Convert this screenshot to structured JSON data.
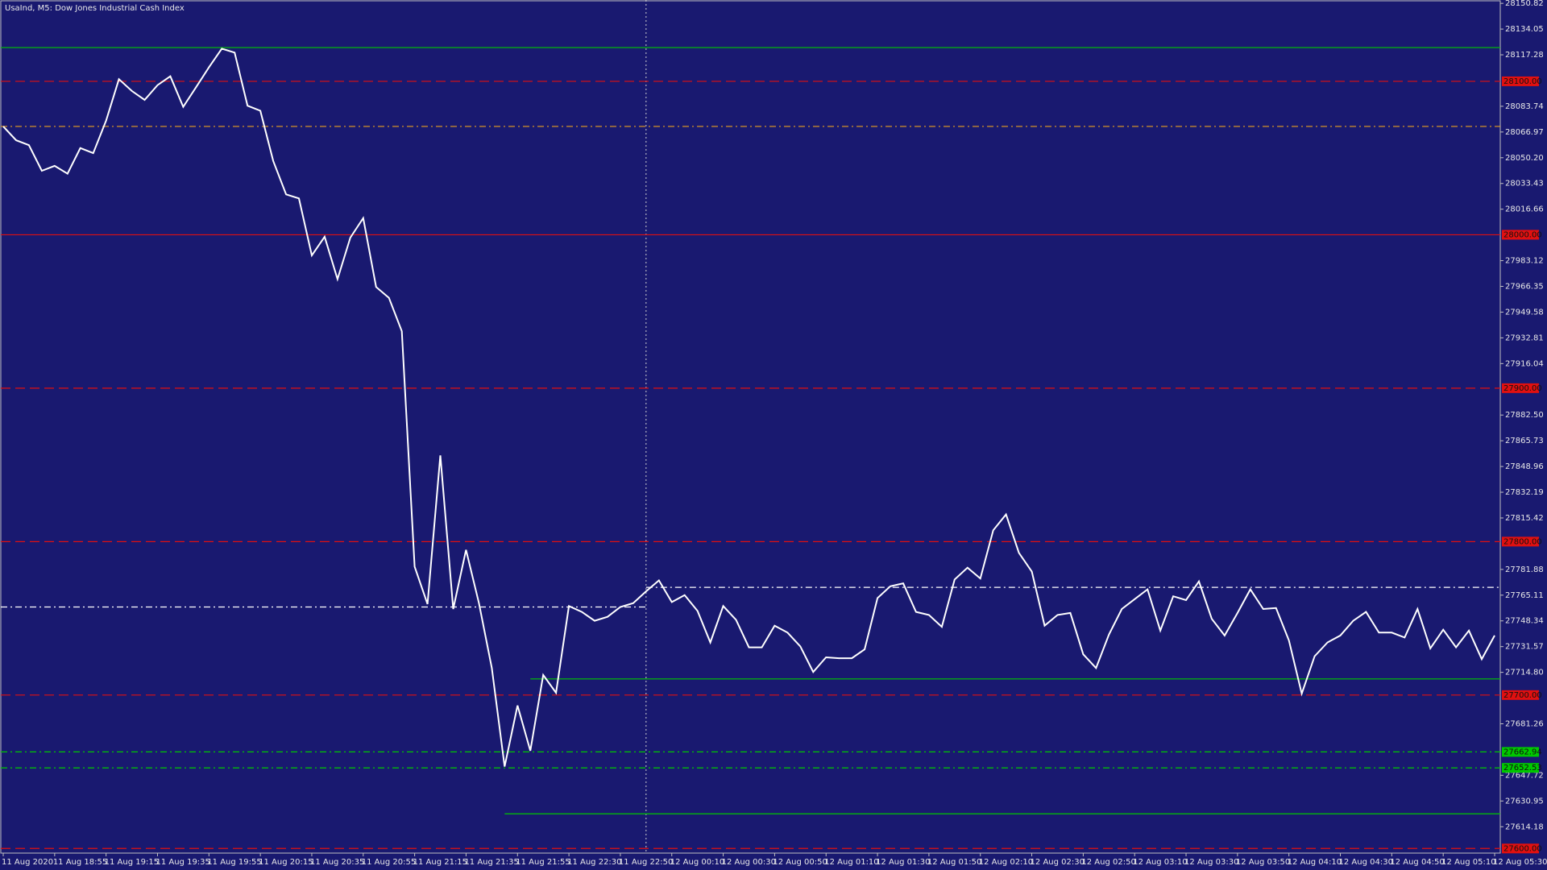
{
  "chart_data": {
    "type": "line",
    "title": "UsaInd, M5:  Dow Jones Industrial Cash Index",
    "background": "#191970",
    "color": "#ffffff",
    "x": [
      "11 Aug 2020",
      null,
      null,
      null,
      "11 Aug 18:55",
      null,
      null,
      null,
      "11 Aug 19:15",
      null,
      null,
      null,
      "11 Aug 19:35",
      null,
      null,
      null,
      "11 Aug 19:55",
      null,
      null,
      null,
      "11 Aug 20:15",
      null,
      null,
      null,
      "11 Aug 20:35",
      null,
      null,
      null,
      "11 Aug 20:55",
      null,
      null,
      null,
      "11 Aug 21:15",
      null,
      null,
      null,
      "11 Aug 21:35",
      null,
      null,
      null,
      "11 Aug 21:55",
      null,
      null,
      null,
      "11 Aug 22:30",
      null,
      null,
      null,
      "11 Aug 22:50",
      null,
      null,
      null,
      "12 Aug 00:10",
      null,
      null,
      null,
      "12 Aug 00:30",
      null,
      null,
      null,
      "12 Aug 00:50",
      null,
      null,
      null,
      "12 Aug 01:10",
      null,
      null,
      null,
      "12 Aug 01:30",
      null,
      null,
      null,
      "12 Aug 01:50",
      null,
      null,
      null,
      "12 Aug 02:10",
      null,
      null,
      null,
      "12 Aug 02:30",
      null,
      null,
      null,
      "12 Aug 02:50",
      null,
      null,
      null,
      "12 Aug 03:10",
      null,
      null,
      null,
      "12 Aug 03:30",
      null,
      null,
      null,
      "12 Aug 03:50",
      null,
      null,
      null,
      "12 Aug 04:10",
      null,
      null,
      null,
      "12 Aug 04:30",
      null,
      null,
      null,
      "12 Aug 04:50",
      null,
      null,
      null,
      "12 Aug 05:10",
      null,
      null,
      null,
      "12 Aug 05:30"
    ],
    "values": [
      28070.6,
      28061.6,
      28058.4,
      28041.7,
      28044.9,
      28039.8,
      28056.5,
      28053.2,
      28074.4,
      28101.4,
      28093.7,
      28087.9,
      28097.5,
      28103.3,
      28083.4,
      28096.2,
      28109.1,
      28121.3,
      28118.7,
      28084.1,
      28080.8,
      28048.1,
      28026.3,
      28023.7,
      27986.5,
      27998.7,
      27971.1,
      27998.1,
      28010.9,
      27966.0,
      27958.9,
      27937.1,
      27783.7,
      27759.3,
      27856.2,
      27756.1,
      27794.6,
      27759.9,
      27717.6,
      27653.4,
      27693.2,
      27663.7,
      27713.1,
      27701.5,
      27758.0,
      27754.2,
      27748.4,
      27751.0,
      27757.4,
      27759.9,
      27767.6,
      27774.7,
      27760.6,
      27765.1,
      27754.8,
      27734.3,
      27758.0,
      27749.0,
      27731.1,
      27731.1,
      27745.2,
      27740.7,
      27731.7,
      27715.0,
      27724.6,
      27724.0,
      27724.0,
      27729.8,
      27763.2,
      27770.9,
      27772.8,
      27754.2,
      27752.2,
      27744.5,
      27775.3,
      27783.0,
      27776.0,
      27807.4,
      27817.7,
      27792.7,
      27780.5,
      27745.2,
      27752.2,
      27753.5,
      27726.6,
      27717.6,
      27739.4,
      27756.1,
      27762.5,
      27768.9,
      27742.0,
      27764.4,
      27761.9,
      27774.1,
      27749.7,
      27738.8,
      27753.5,
      27768.9,
      27756.1,
      27756.7,
      27735.6,
      27700.9,
      27725.3,
      27734.3,
      27738.8,
      27748.4,
      27754.2,
      27740.7,
      27740.7,
      27737.5,
      27756.1,
      27730.4,
      27742.6,
      27731.1,
      27742.0,
      27723.4,
      27738.8
    ],
    "ylim": [
      27597,
      28153
    ],
    "yticks": [
      28150.82,
      28134.05,
      28117.28,
      28083.74,
      28066.97,
      {
        "value": 28050.2,
        "label": "28050.20"
      },
      28033.43,
      28016.66,
      27983.12,
      27966.35,
      27949.58,
      27932.81,
      27916.04,
      {
        "value": 27882.5,
        "label": "27882.50"
      },
      27865.73,
      27848.96,
      27832.19,
      27815.42,
      27781.88,
      27765.11,
      27748.34,
      27731.57,
      {
        "value": 27714.8,
        "label": "27714.80"
      },
      27681.26,
      27647.72,
      27630.95,
      27614.18
    ],
    "vline": 50,
    "levels": [
      {
        "value": 28122,
        "color": "#00c800",
        "style": "solid"
      },
      {
        "value": 28100,
        "label": "28100.00",
        "color": "#e01010",
        "style": "dashed"
      },
      {
        "value": 28070.6,
        "color": "#e8a020",
        "style": "dashdot"
      },
      {
        "value": 28000,
        "label": "28000.00",
        "color": "#e01010",
        "style": "solid"
      },
      {
        "value": 27900,
        "label": "27900.00",
        "color": "#e01010",
        "style": "dashed"
      },
      {
        "value": 27800,
        "label": "27800.00",
        "color": "#e01010",
        "style": "dashed"
      },
      {
        "value": 27757.4,
        "color": "#ffffff",
        "style": "dashdot",
        "end": 50
      },
      {
        "value": 27770.2,
        "color": "#ffffff",
        "style": "dashdot",
        "start": 50
      },
      {
        "value": 27700,
        "label": "27700.00",
        "color": "#e01010",
        "style": "dashed"
      },
      {
        "value": 27710.5,
        "color": "#00c800",
        "style": "solid",
        "start": 41
      },
      {
        "value": 27662.94,
        "label": "27662.94",
        "color": "#00c800",
        "style": "dashdot"
      },
      {
        "value": 27652.53,
        "label": "27652.53",
        "color": "#00c800",
        "style": "dashdot"
      },
      {
        "value": 27622.6,
        "color": "#00c800",
        "style": "solid",
        "start": 39
      },
      {
        "value": 27600,
        "label": "27600.00",
        "color": "#e01010",
        "style": "dashed"
      }
    ]
  }
}
